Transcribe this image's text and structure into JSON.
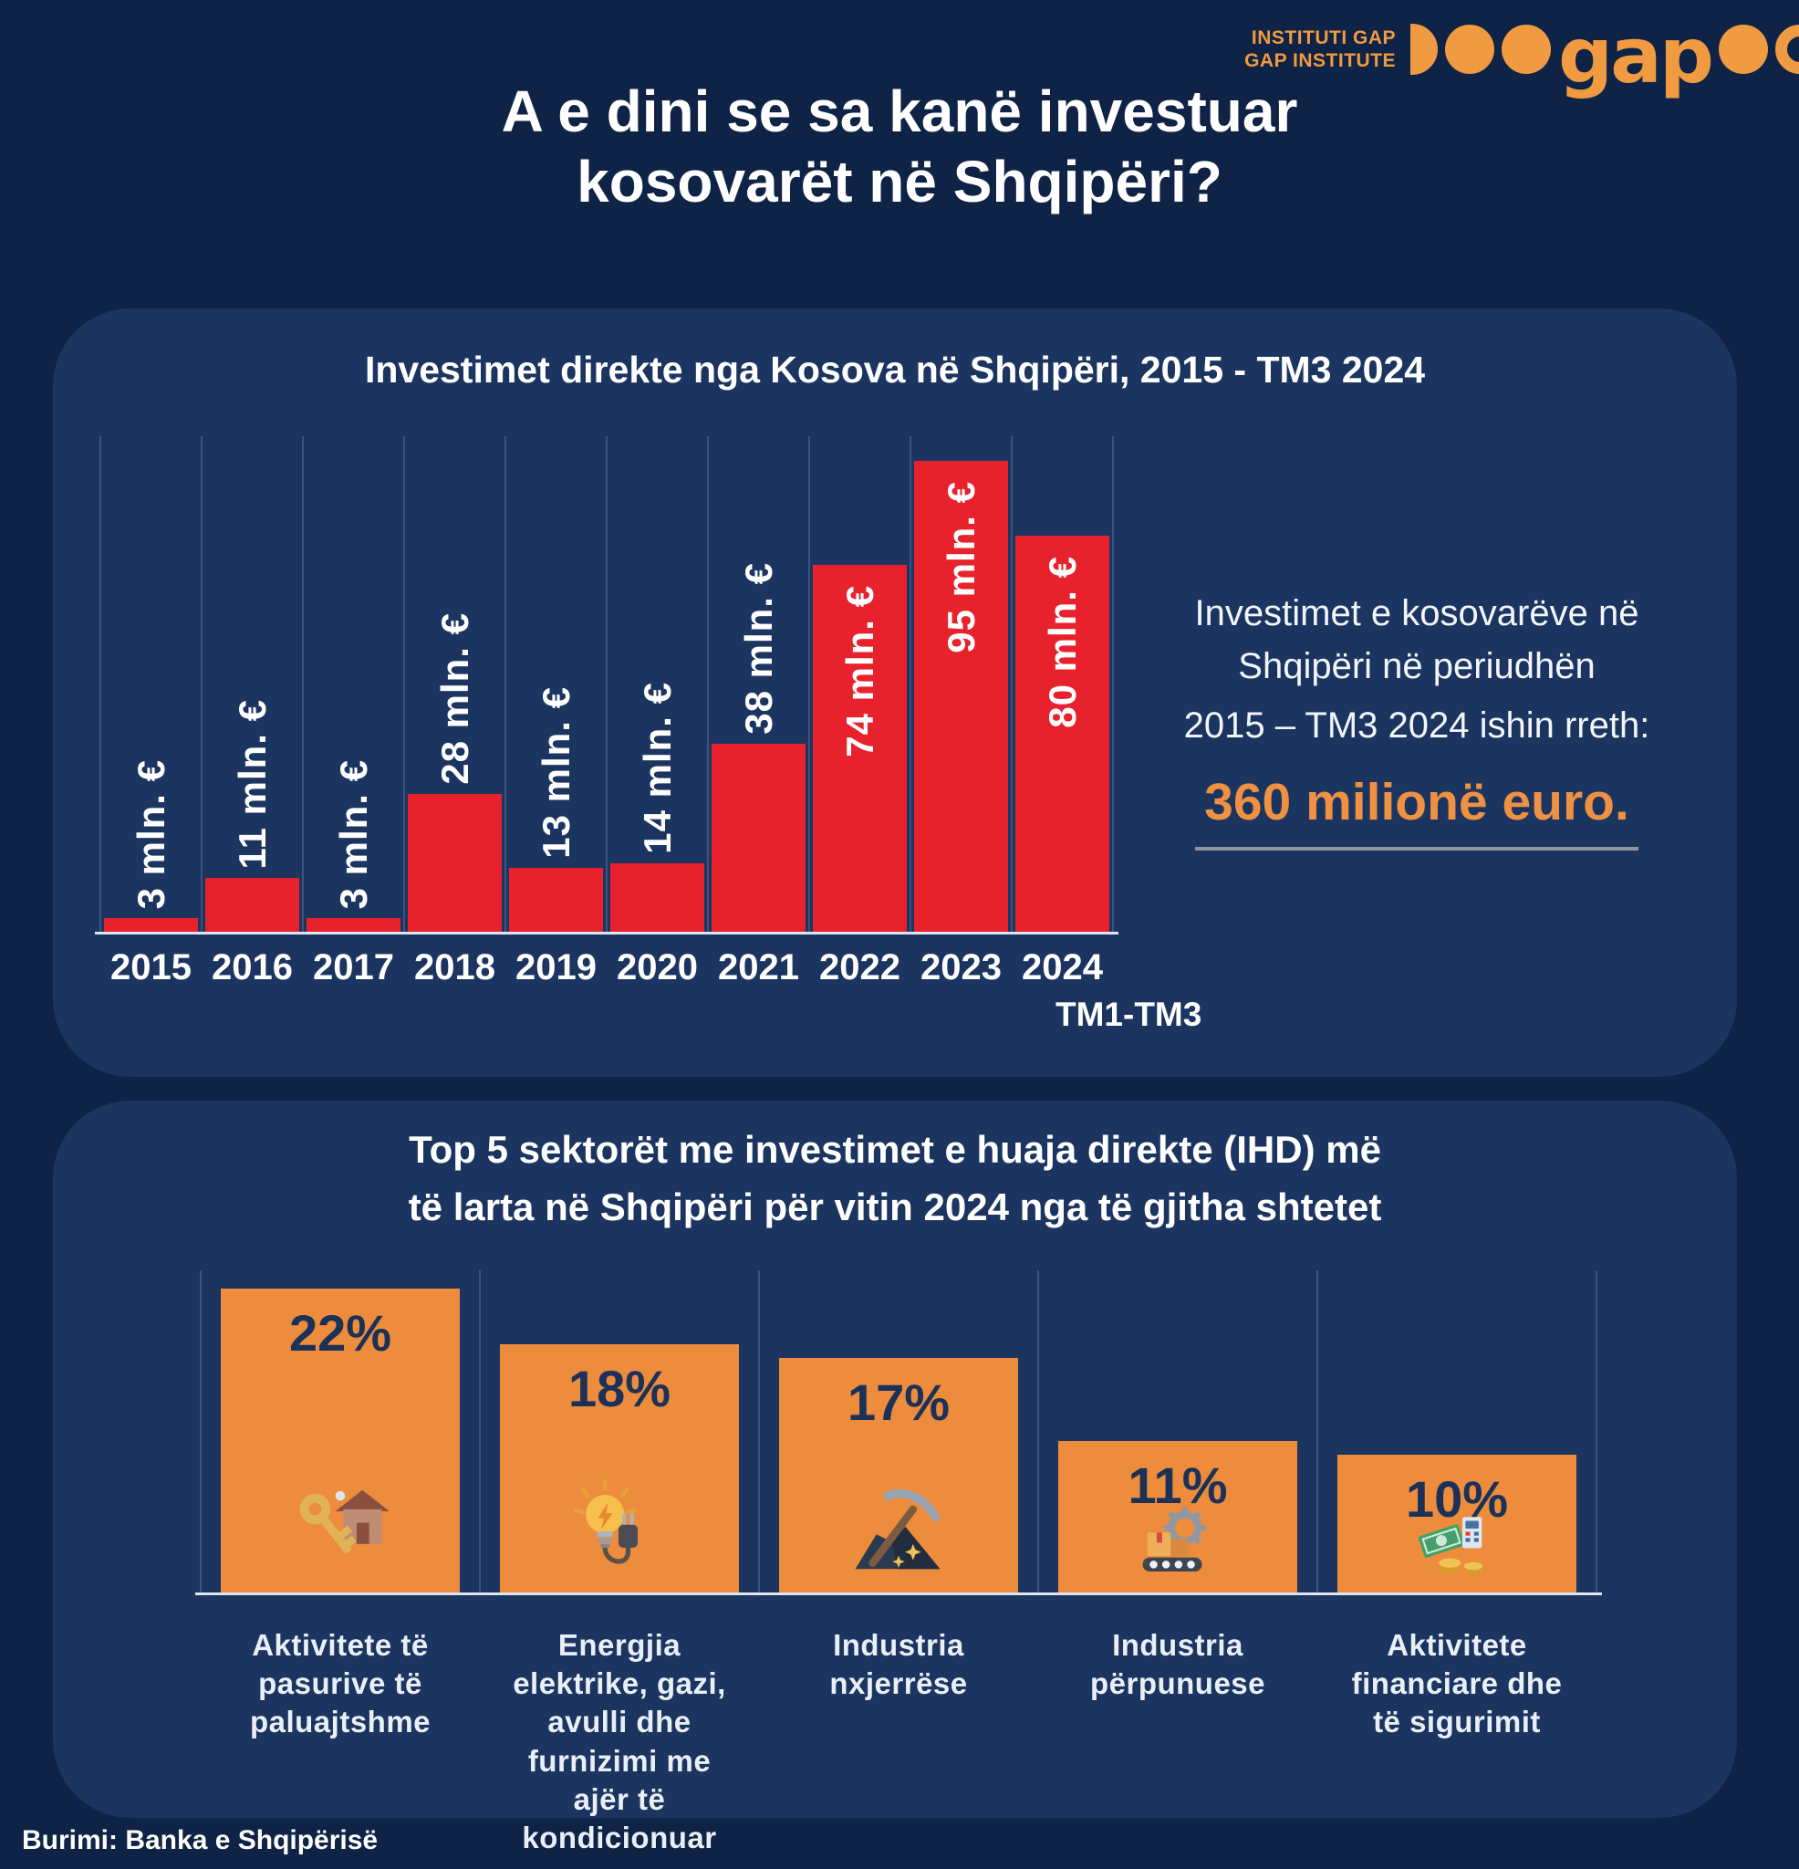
{
  "brand": {
    "name_sq": "INSTITUTI GAP",
    "name_en": "GAP INSTITUTE",
    "wordmark": "gap"
  },
  "title": {
    "line1": "A e dini se sa kanë investuar",
    "line2": "kosovarët në Shqipëri?"
  },
  "aside": {
    "line1": "Investimet e kosovarëve në",
    "line2": "Shqipëri në periudhën",
    "line3": "2015 – TM3 2024 ishin rreth:",
    "highlight": "360 milionë euro."
  },
  "footer": {
    "source": "Burimi: Banka e Shqipërisë"
  },
  "colors": {
    "background": "#0e2345",
    "panel": "#1b3560",
    "red_bar": "#e8222d",
    "orange_bar": "#ec8c3c",
    "logo_orange": "#f09a42",
    "highlight_orange": "#ef9143",
    "percent_navy": "#1b3157",
    "white_text": "#ffffff"
  },
  "chart_data": [
    {
      "type": "bar",
      "title": "Investimet direkte nga Kosova në Shqipëri, 2015 - TM3 2024",
      "categories": [
        "2015",
        "2016",
        "2017",
        "2018",
        "2019",
        "2020",
        "2021",
        "2022",
        "2023",
        "2024"
      ],
      "category_subnote": {
        "index": 9,
        "label": "TM1-TM3"
      },
      "values": [
        3,
        11,
        3,
        28,
        13,
        14,
        38,
        74,
        95,
        80
      ],
      "bar_labels": [
        "3 mln. €",
        "11 mln. €",
        "3 mln. €",
        "28 mln. €",
        "13 mln. €",
        "14 mln. €",
        "38 mln. €",
        "74 mln. €",
        "95 mln. €",
        "80 mln. €"
      ],
      "unit": "mln €",
      "xlabel": "",
      "ylabel": "",
      "ylim": [
        0,
        100
      ],
      "grid": "vertical",
      "legend": "none",
      "bar_color": "#e8222d",
      "label_inside_min_value": 70
    },
    {
      "type": "bar",
      "title_lines": [
        "Top 5 sektorët me investimet e huaja direkte (IHD) më",
        "të larta në Shqipëri për vitin 2024 nga të gjitha shtetet"
      ],
      "categories": [
        "Aktivitete të\npasurive të\npaluajtshme",
        "Energjia\nelektrike, gazi,\navulli dhe\nfurnizimi me\najër të\nkondicionuar",
        "Industria\nnxjerrëse",
        "Industria\npërpunuese",
        "Aktivitete\nfinanciare dhe\ntë sigurimit"
      ],
      "values": [
        22,
        18,
        17,
        11,
        10
      ],
      "value_labels": [
        "22%",
        "18%",
        "17%",
        "11%",
        "10%"
      ],
      "icons": [
        "key-house-icon",
        "electricity-bulb-plug-icon",
        "mining-pickaxe-icon",
        "manufacturing-conveyor-icon",
        "finance-money-icon"
      ],
      "xlabel": "",
      "ylabel": "",
      "ylim": [
        0,
        25
      ],
      "grid": "vertical",
      "legend": "none",
      "bar_color": "#ec8c3c"
    }
  ]
}
